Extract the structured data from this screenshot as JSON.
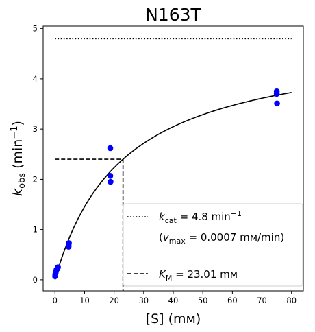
{
  "chart_data": {
    "type": "scatter",
    "title": "N163T",
    "xlabel": "[S] (mм)",
    "ylabel": "k_obs (min⁻¹)",
    "ylabel_parts": {
      "main": "k",
      "sub": "obs",
      "unit_open": " (min",
      "sup": "−1",
      "unit_close": ")"
    },
    "xlim": [
      -4,
      84
    ],
    "ylim": [
      -0.22,
      5.05
    ],
    "xticks": [
      0,
      10,
      20,
      30,
      40,
      50,
      60,
      70,
      80
    ],
    "yticks": [
      0,
      1,
      2,
      3,
      4,
      5
    ],
    "grid": false,
    "legend_position": "lower-right",
    "points": {
      "color": "#0000ff",
      "x": [
        0.05,
        0.1,
        0.2,
        0.3,
        0.5,
        0.8,
        1.0,
        4.6,
        4.6,
        4.7,
        18.7,
        18.7,
        18.8,
        75.0,
        75.0,
        75.1
      ],
      "y": [
        0.07,
        0.1,
        0.13,
        0.16,
        0.2,
        0.22,
        0.25,
        0.66,
        0.69,
        0.73,
        2.62,
        2.07,
        1.95,
        3.75,
        3.7,
        3.51
      ]
    },
    "fit_curve": {
      "color": "#000000",
      "kcat": 4.8,
      "km": 23.01,
      "x_range": [
        0.02,
        80
      ]
    },
    "kcat_line": {
      "y": 4.8,
      "x_range": [
        0,
        80
      ],
      "style": "dotted"
    },
    "km_lines": {
      "x": 23.01,
      "half_y": 2.4,
      "x_start": 0,
      "style": "dashed"
    },
    "legend": [
      {
        "style": "dotted",
        "label_parts": {
          "var": "k",
          "sub": "cat",
          "text": " = 4.8 min",
          "sup": "−1"
        },
        "note_parts": {
          "open": "(",
          "var": "v",
          "sub": "max",
          "text": " = 0.0007 mм/min)"
        }
      },
      {
        "style": "dashed",
        "label_parts": {
          "var": "K",
          "sub": "M",
          "text": " = 23.01 mм"
        }
      }
    ]
  }
}
